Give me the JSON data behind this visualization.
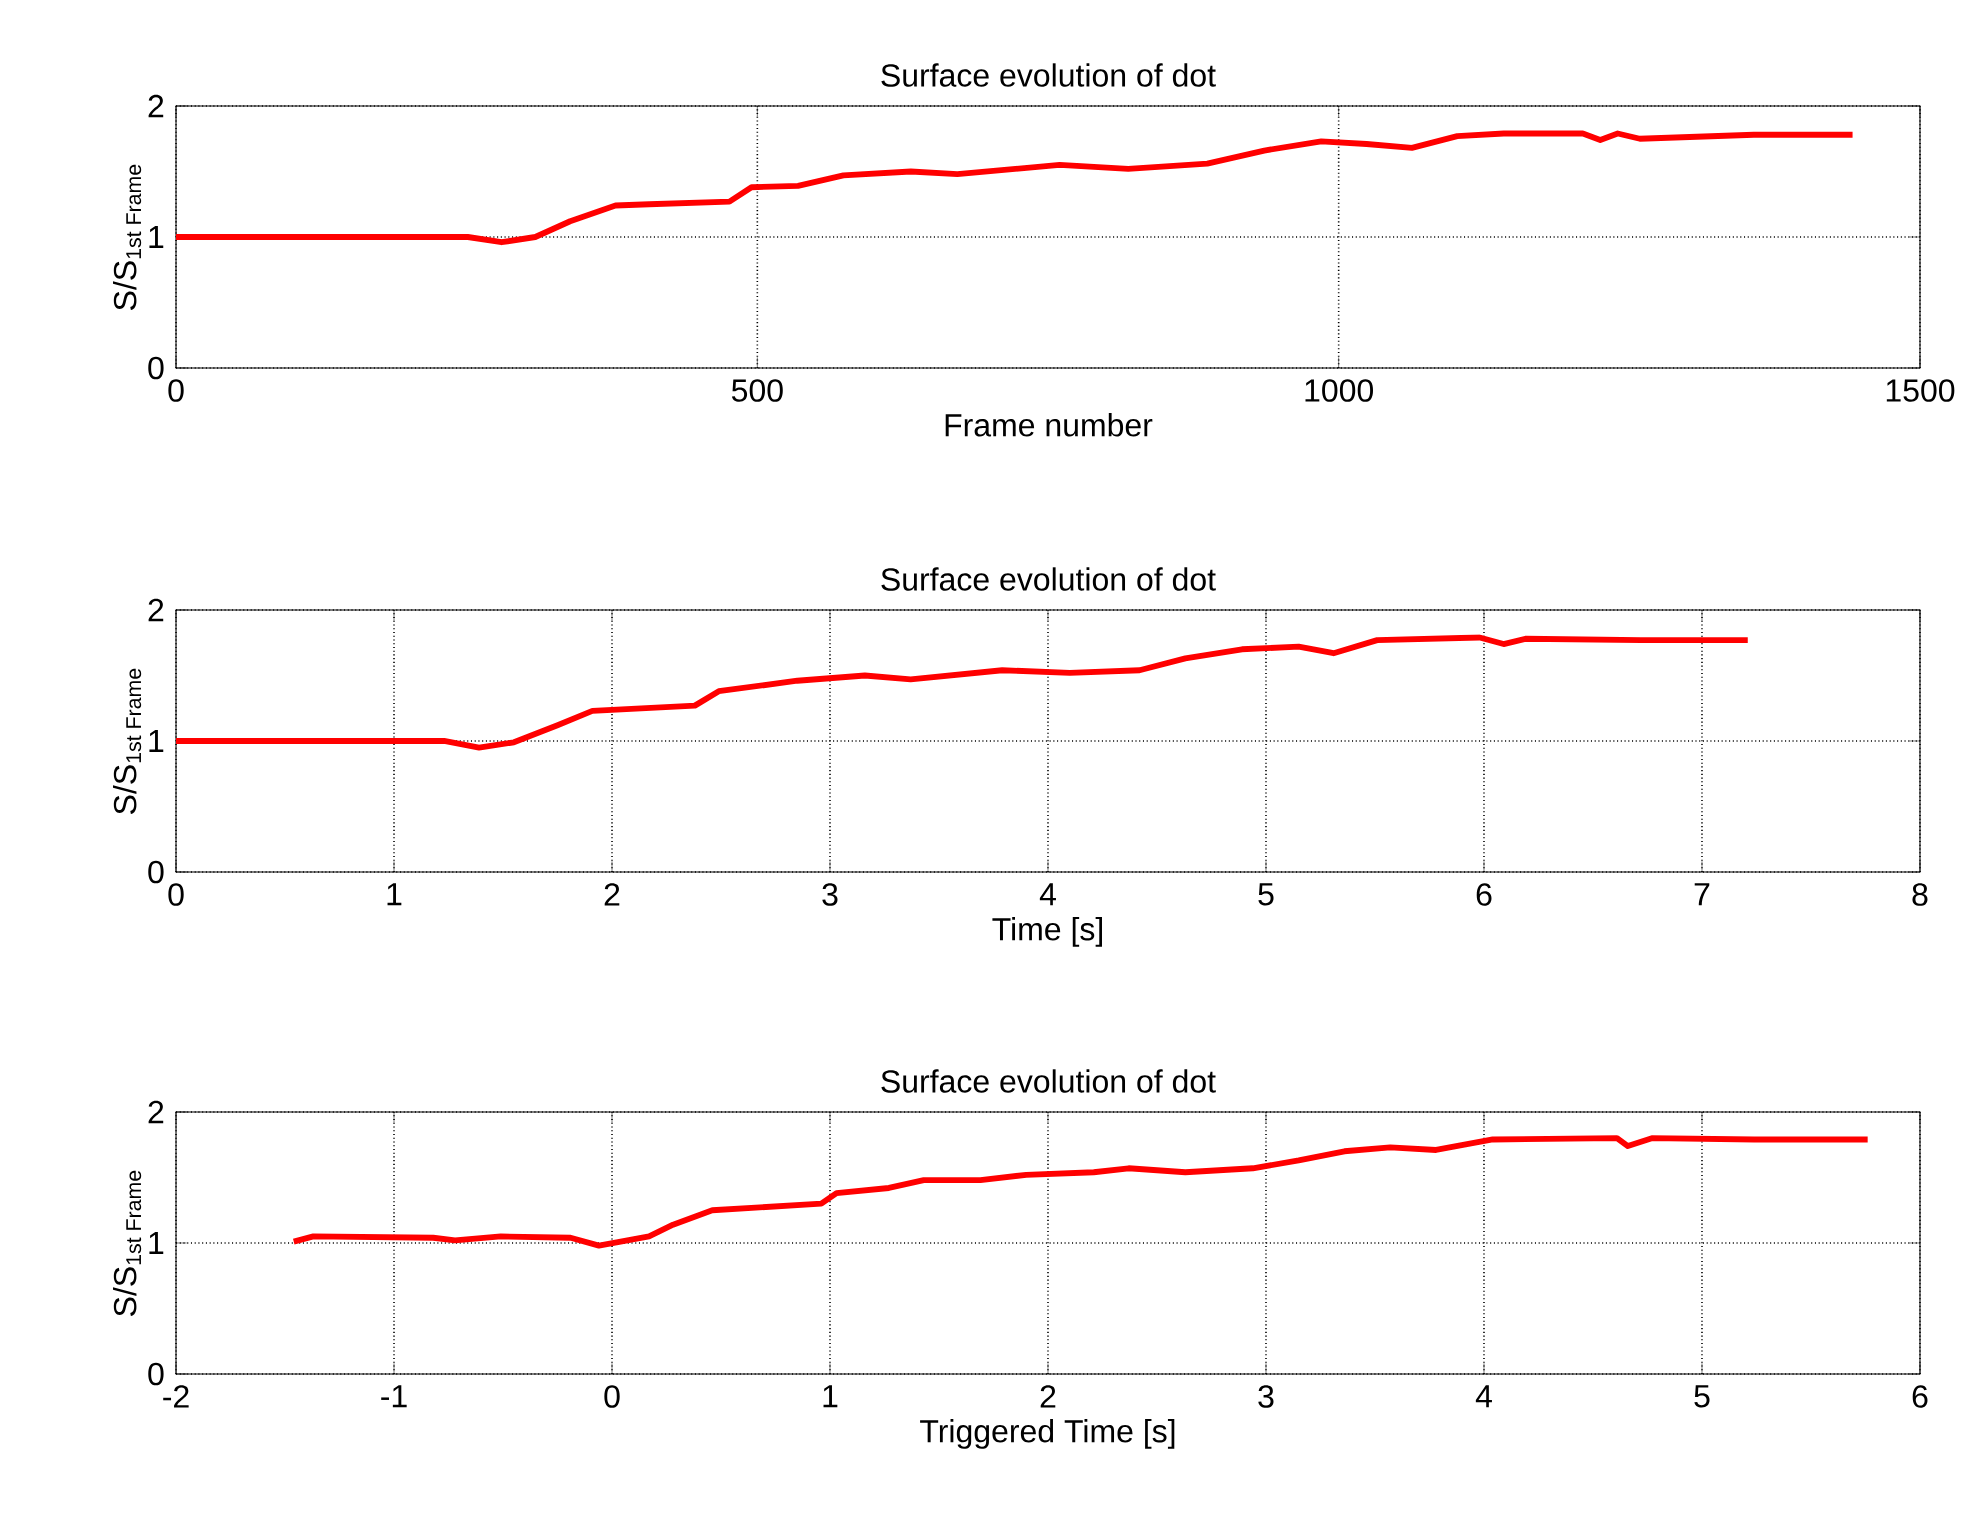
{
  "chart_data": [
    {
      "type": "line",
      "title": "Surface evolution of dot",
      "xlabel": "Frame number",
      "ylabel": "\\text{S/S}_{\\text{1st Frame}}",
      "xlim": [
        0,
        1500
      ],
      "xticks": [
        0,
        500,
        1000,
        1500
      ],
      "ylim": [
        0,
        2
      ],
      "yticks": [
        0,
        1,
        2
      ],
      "grid": true,
      "marker": "none",
      "line_style": "solid",
      "series": [
        {
          "color": "#ff0000",
          "x": [
            0,
            251,
            280,
            309,
            339,
            378,
            407,
            476,
            495,
            535,
            574,
            632,
            672,
            760,
            819,
            887,
            936,
            985,
            1024,
            1063,
            1102,
            1142,
            1210,
            1225,
            1240,
            1259,
            1357,
            1442
          ],
          "values": [
            1.0,
            1.0,
            0.96,
            1.0,
            1.12,
            1.24,
            1.25,
            1.27,
            1.38,
            1.39,
            1.47,
            1.5,
            1.48,
            1.55,
            1.52,
            1.56,
            1.66,
            1.73,
            1.71,
            1.68,
            1.77,
            1.79,
            1.79,
            1.74,
            1.79,
            1.75,
            1.78,
            1.78
          ]
        }
      ]
    },
    {
      "type": "line",
      "title": "Surface evolution of dot",
      "xlabel": "Time [s]",
      "ylabel": "\\text{S/S}_{\\text{1st Frame}}",
      "xlim": [
        0,
        8
      ],
      "xticks": [
        0,
        1,
        2,
        3,
        4,
        5,
        6,
        7,
        8
      ],
      "ylim": [
        0,
        2
      ],
      "yticks": [
        0,
        1,
        2
      ],
      "grid": true,
      "marker": "none",
      "line_style": "solid",
      "series": [
        {
          "color": "#ff0000",
          "x": [
            0,
            1.23,
            1.39,
            1.55,
            1.75,
            1.91,
            2.38,
            2.49,
            2.85,
            3.16,
            3.37,
            3.79,
            4.1,
            4.42,
            4.63,
            4.89,
            5.15,
            5.31,
            5.51,
            5.98,
            6.09,
            6.19,
            6.72,
            7.21
          ],
          "values": [
            1.0,
            1.0,
            0.95,
            0.99,
            1.12,
            1.23,
            1.27,
            1.38,
            1.46,
            1.5,
            1.47,
            1.54,
            1.52,
            1.54,
            1.63,
            1.7,
            1.72,
            1.67,
            1.77,
            1.79,
            1.74,
            1.78,
            1.77,
            1.77
          ]
        }
      ]
    },
    {
      "type": "line",
      "title": "Surface evolution of dot",
      "xlabel": "Triggered Time [s]",
      "ylabel": "\\text{S/S}_{\\text{1st Frame}}",
      "xlim": [
        -2,
        6
      ],
      "xticks": [
        -2,
        -1,
        0,
        1,
        2,
        3,
        4,
        5,
        6
      ],
      "ylim": [
        0,
        2
      ],
      "yticks": [
        0,
        1,
        2
      ],
      "grid": true,
      "marker": "none",
      "line_style": "solid",
      "series": [
        {
          "color": "#ff0000",
          "x": [
            -1.46,
            -1.37,
            -0.82,
            -0.72,
            -0.51,
            -0.19,
            -0.06,
            0.17,
            0.28,
            0.46,
            0.96,
            1.03,
            1.27,
            1.43,
            1.69,
            1.9,
            2.21,
            2.37,
            2.63,
            2.94,
            3.15,
            3.36,
            3.57,
            3.78,
            4.04,
            4.61,
            4.66,
            4.77,
            5.24,
            5.76
          ],
          "values": [
            1.01,
            1.05,
            1.04,
            1.02,
            1.05,
            1.04,
            0.98,
            1.05,
            1.14,
            1.25,
            1.3,
            1.38,
            1.42,
            1.48,
            1.48,
            1.52,
            1.54,
            1.57,
            1.54,
            1.57,
            1.63,
            1.7,
            1.73,
            1.71,
            1.79,
            1.8,
            1.74,
            1.8,
            1.79,
            1.79
          ]
        }
      ]
    }
  ]
}
